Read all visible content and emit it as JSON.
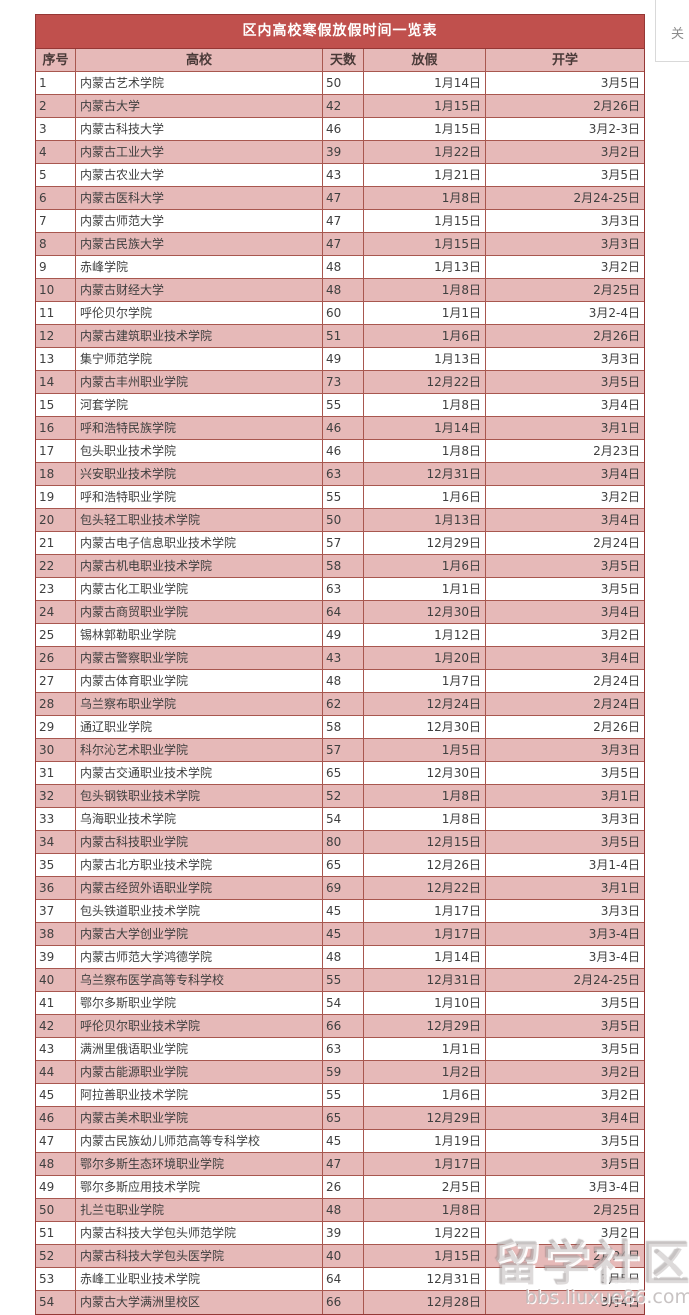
{
  "colors": {
    "accent": "#c0504d",
    "row_alt": "#e6b9b8",
    "border": "#a8574f",
    "border_dark": "#953735"
  },
  "table": {
    "title": "区内高校寒假放假时间一览表",
    "columns": [
      "序号",
      "高校",
      "天数",
      "放假",
      "开学"
    ],
    "rows": [
      [
        "1",
        "内蒙古艺术学院",
        "50",
        "1月14日",
        "3月5日"
      ],
      [
        "2",
        "内蒙古大学",
        "42",
        "1月15日",
        "2月26日"
      ],
      [
        "3",
        "内蒙古科技大学",
        "46",
        "1月15日",
        "3月2-3日"
      ],
      [
        "4",
        "内蒙古工业大学",
        "39",
        "1月22日",
        "3月2日"
      ],
      [
        "5",
        "内蒙古农业大学",
        "43",
        "1月21日",
        "3月5日"
      ],
      [
        "6",
        "内蒙古医科大学",
        "47",
        "1月8日",
        "2月24-25日"
      ],
      [
        "7",
        "内蒙古师范大学",
        "47",
        "1月15日",
        "3月3日"
      ],
      [
        "8",
        "内蒙古民族大学",
        "47",
        "1月15日",
        "3月3日"
      ],
      [
        "9",
        "赤峰学院",
        "48",
        "1月13日",
        "3月2日"
      ],
      [
        "10",
        "内蒙古财经大学",
        "48",
        "1月8日",
        "2月25日"
      ],
      [
        "11",
        "呼伦贝尔学院",
        "60",
        "1月1日",
        "3月2-4日"
      ],
      [
        "12",
        "内蒙古建筑职业技术学院",
        "51",
        "1月6日",
        "2月26日"
      ],
      [
        "13",
        "集宁师范学院",
        "49",
        "1月13日",
        "3月3日"
      ],
      [
        "14",
        "内蒙古丰州职业学院",
        "73",
        "12月22日",
        "3月5日"
      ],
      [
        "15",
        "河套学院",
        "55",
        "1月8日",
        "3月4日"
      ],
      [
        "16",
        "呼和浩特民族学院",
        "46",
        "1月14日",
        "3月1日"
      ],
      [
        "17",
        "包头职业技术学院",
        "46",
        "1月8日",
        "2月23日"
      ],
      [
        "18",
        "兴安职业技术学院",
        "63",
        "12月31日",
        "3月4日"
      ],
      [
        "19",
        "呼和浩特职业学院",
        "55",
        "1月6日",
        "3月2日"
      ],
      [
        "20",
        "包头轻工职业技术学院",
        "50",
        "1月13日",
        "3月4日"
      ],
      [
        "21",
        "内蒙古电子信息职业技术学院",
        "57",
        "12月29日",
        "2月24日"
      ],
      [
        "22",
        "内蒙古机电职业技术学院",
        "58",
        "1月6日",
        "3月5日"
      ],
      [
        "23",
        "内蒙古化工职业学院",
        "63",
        "1月1日",
        "3月5日"
      ],
      [
        "24",
        "内蒙古商贸职业学院",
        "64",
        "12月30日",
        "3月4日"
      ],
      [
        "25",
        "锡林郭勒职业学院",
        "49",
        "1月12日",
        "3月2日"
      ],
      [
        "26",
        "内蒙古警察职业学院",
        "43",
        "1月20日",
        "3月4日"
      ],
      [
        "27",
        "内蒙古体育职业学院",
        "48",
        "1月7日",
        "2月24日"
      ],
      [
        "28",
        "乌兰察布职业学院",
        "62",
        "12月24日",
        "2月24日"
      ],
      [
        "29",
        "通辽职业学院",
        "58",
        "12月30日",
        "2月26日"
      ],
      [
        "30",
        "科尔沁艺术职业学院",
        "57",
        "1月5日",
        "3月3日"
      ],
      [
        "31",
        "内蒙古交通职业技术学院",
        "65",
        "12月30日",
        "3月5日"
      ],
      [
        "32",
        "包头钢铁职业技术学院",
        "52",
        "1月8日",
        "3月1日"
      ],
      [
        "33",
        "乌海职业技术学院",
        "54",
        "1月8日",
        "3月3日"
      ],
      [
        "34",
        "内蒙古科技职业学院",
        "80",
        "12月15日",
        "3月5日"
      ],
      [
        "35",
        "内蒙古北方职业技术学院",
        "65",
        "12月26日",
        "3月1-4日"
      ],
      [
        "36",
        "内蒙古经贸外语职业学院",
        "69",
        "12月22日",
        "3月1日"
      ],
      [
        "37",
        "包头铁道职业技术学院",
        "45",
        "1月17日",
        "3月3日"
      ],
      [
        "38",
        "内蒙古大学创业学院",
        "45",
        "1月17日",
        "3月3-4日"
      ],
      [
        "39",
        "内蒙古师范大学鸿德学院",
        "48",
        "1月14日",
        "3月3-4日"
      ],
      [
        "40",
        "乌兰察布医学高等专科学校",
        "55",
        "12月31日",
        "2月24-25日"
      ],
      [
        "41",
        "鄂尔多斯职业学院",
        "54",
        "1月10日",
        "3月5日"
      ],
      [
        "42",
        "呼伦贝尔职业技术学院",
        "66",
        "12月29日",
        "3月5日"
      ],
      [
        "43",
        "满洲里俄语职业学院",
        "63",
        "1月1日",
        "3月5日"
      ],
      [
        "44",
        "内蒙古能源职业学院",
        "59",
        "1月2日",
        "3月2日"
      ],
      [
        "45",
        "阿拉善职业技术学院",
        "55",
        "1月6日",
        "3月2日"
      ],
      [
        "46",
        "内蒙古美术职业学院",
        "65",
        "12月29日",
        "3月4日"
      ],
      [
        "47",
        "内蒙古民族幼儿师范高等专科学校",
        "45",
        "1月19日",
        "3月5日"
      ],
      [
        "48",
        "鄂尔多斯生态环境职业学院",
        "47",
        "1月17日",
        "3月5日"
      ],
      [
        "49",
        "鄂尔多斯应用技术学院",
        "26",
        "2月5日",
        "3月3-4日"
      ],
      [
        "50",
        "扎兰屯职业学院",
        "48",
        "1月8日",
        "2月25日"
      ],
      [
        "51",
        "内蒙古科技大学包头师范学院",
        "39",
        "1月22日",
        "3月2日"
      ],
      [
        "52",
        "内蒙古科技大学包头医学院",
        "40",
        "1月15日",
        "2月24日"
      ],
      [
        "53",
        "赤峰工业职业技术学院",
        "64",
        "12月31日",
        "3月5日"
      ],
      [
        "54",
        "内蒙古大学满洲里校区",
        "66",
        "12月28日",
        "3月4日"
      ]
    ]
  },
  "corner_overlay": {
    "partial_char": "关"
  },
  "watermark": {
    "line1": "留学社区",
    "line2": "bbs.liuxue86.com"
  }
}
